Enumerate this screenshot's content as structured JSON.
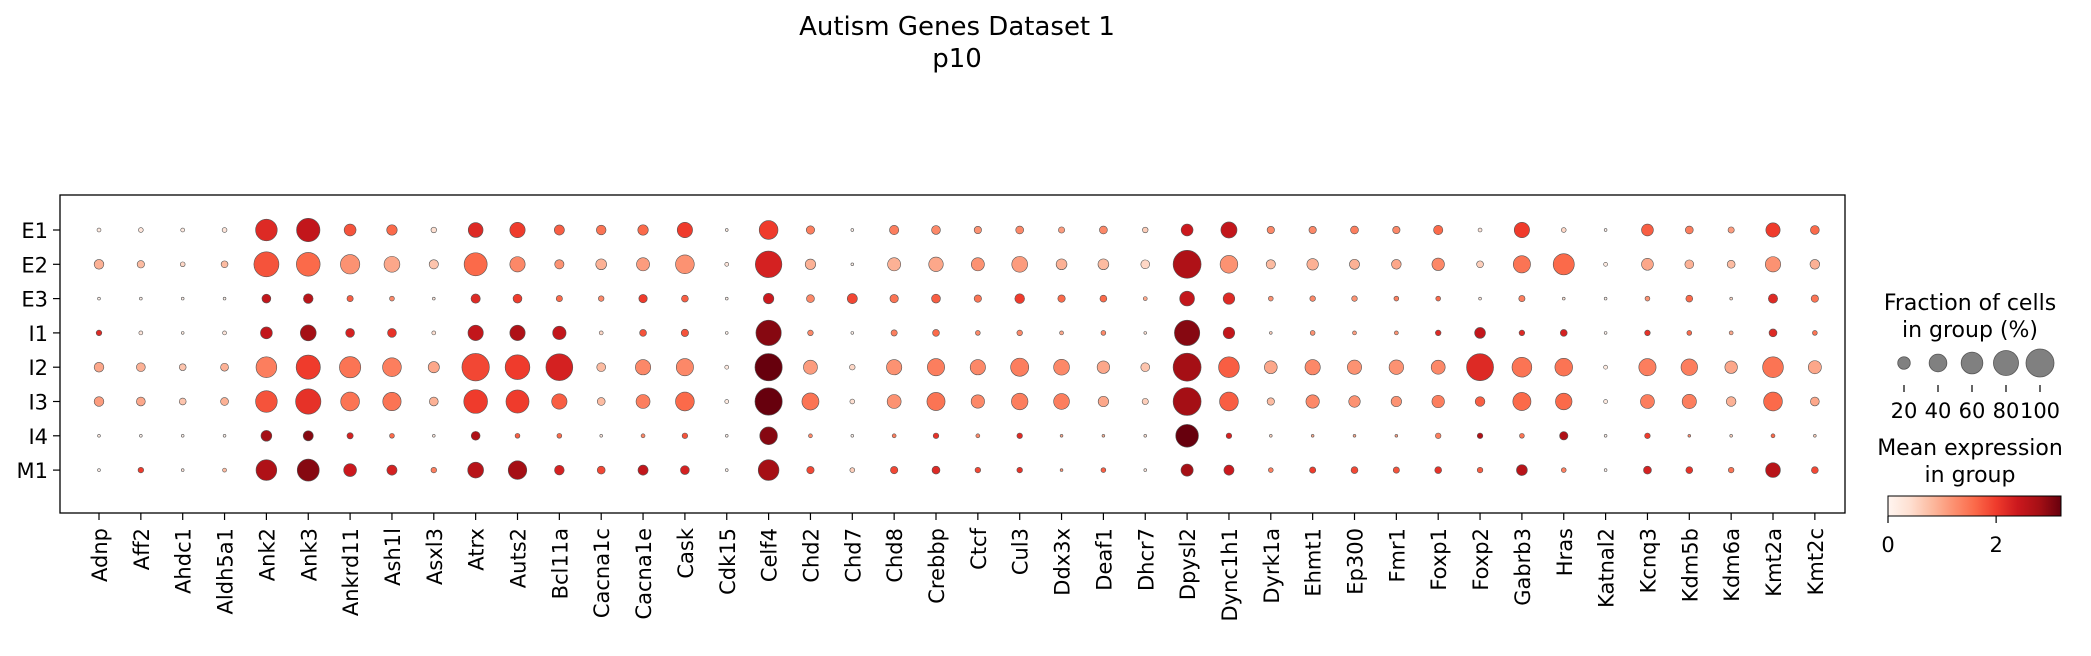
{
  "chart_data": {
    "type": "dotplot",
    "title": "Autism Genes Dataset 1",
    "subtitle": "p10",
    "genes": [
      "Adnp",
      "Aff2",
      "Ahdc1",
      "Aldh5a1",
      "Ank2",
      "Ank3",
      "Ankrd11",
      "Ash1l",
      "Asxl3",
      "Atrx",
      "Auts2",
      "Bcl11a",
      "Cacna1c",
      "Cacna1e",
      "Cask",
      "Cdk15",
      "Celf4",
      "Chd2",
      "Chd7",
      "Chd8",
      "Crebbp",
      "Ctcf",
      "Cul3",
      "Ddx3x",
      "Deaf1",
      "Dhcr7",
      "Dpysl2",
      "Dync1h1",
      "Dyrk1a",
      "Ehmt1",
      "Ep300",
      "Fmr1",
      "Foxp1",
      "Foxp2",
      "Gabrb3",
      "Hras",
      "Katnal2",
      "Kcnq3",
      "Kdm5b",
      "Kdm6a",
      "Kmt2a",
      "Kmt2c"
    ],
    "groups": [
      "E1",
      "E2",
      "E3",
      "I1",
      "I2",
      "I3",
      "I4",
      "M1"
    ],
    "fraction_pct": [
      [
        2,
        3,
        2,
        3,
        60,
        70,
        18,
        14,
        4,
        28,
        30,
        13,
        12,
        14,
        30,
        1,
        45,
        9,
        1,
        11,
        10,
        7,
        8,
        5,
        8,
        4,
        18,
        33,
        7,
        7,
        8,
        7,
        11,
        2,
        30,
        3,
        1,
        18,
        8,
        5,
        26,
        10
      ],
      [
        12,
        7,
        3,
        6,
        80,
        72,
        48,
        32,
        11,
        68,
        30,
        11,
        15,
        22,
        45,
        2,
        90,
        14,
        1,
        22,
        27,
        22,
        32,
        15,
        15,
        10,
        100,
        40,
        11,
        17,
        13,
        12,
        20,
        6,
        38,
        57,
        2,
        18,
        10,
        8,
        30,
        12
      ],
      [
        1,
        1,
        1,
        1,
        10,
        12,
        5,
        3,
        1,
        11,
        10,
        5,
        4,
        9,
        6,
        1,
        14,
        8,
        13,
        9,
        10,
        7,
        12,
        7,
        6,
        2,
        28,
        17,
        3,
        4,
        4,
        3,
        3,
        1,
        5,
        1,
        1,
        3,
        6,
        1,
        11,
        7
      ],
      [
        4,
        2,
        1,
        2,
        18,
        32,
        10,
        10,
        2,
        30,
        30,
        23,
        2,
        6,
        7,
        1,
        82,
        4,
        1,
        5,
        6,
        3,
        4,
        2,
        3,
        1,
        82,
        17,
        1,
        3,
        2,
        2,
        4,
        15,
        4,
        6,
        1,
        4,
        3,
        2,
        8,
        3
      ],
      [
        12,
        10,
        6,
        8,
        55,
        75,
        58,
        45,
        16,
        96,
        78,
        92,
        10,
        30,
        38,
        2,
        95,
        25,
        4,
        30,
        38,
        30,
        42,
        32,
        20,
        10,
        100,
        55,
        21,
        30,
        26,
        27,
        25,
        93,
        50,
        40,
        2,
        38,
        35,
        20,
        55,
        22
      ],
      [
        12,
        10,
        6,
        8,
        60,
        82,
        45,
        43,
        10,
        72,
        68,
        30,
        8,
        25,
        45,
        2,
        95,
        37,
        3,
        25,
        42,
        23,
        35,
        32,
        14,
        5,
        100,
        45,
        7,
        23,
        17,
        14,
        20,
        12,
        42,
        35,
        2,
        25,
        26,
        12,
        45,
        10
      ],
      [
        1,
        1,
        1,
        1,
        15,
        13,
        5,
        3,
        1,
        10,
        3,
        3,
        1,
        2,
        4,
        1,
        40,
        2,
        1,
        2,
        4,
        2,
        4,
        1,
        1,
        1,
        66,
        4,
        1,
        1,
        1,
        1,
        4,
        4,
        3,
        9,
        1,
        4,
        1,
        1,
        2,
        1
      ],
      [
        1,
        4,
        1,
        2,
        55,
        62,
        21,
        13,
        4,
        32,
        44,
        12,
        8,
        13,
        10,
        1,
        55,
        7,
        3,
        7,
        8,
        4,
        4,
        1,
        3,
        1,
        19,
        13,
        3,
        5,
        6,
        5,
        6,
        4,
        15,
        3,
        1,
        8,
        6,
        4,
        28,
        6
      ]
    ],
    "mean_expr": [
      [
        0.2,
        0.3,
        0.2,
        0.3,
        2.2,
        2.5,
        1.8,
        1.6,
        0.4,
        2.2,
        2.0,
        1.7,
        1.5,
        1.6,
        2.0,
        0.2,
        2.0,
        1.4,
        0.1,
        1.4,
        1.3,
        1.2,
        1.3,
        1.1,
        1.3,
        0.6,
        2.4,
        2.5,
        1.3,
        1.3,
        1.4,
        1.3,
        1.6,
        0.3,
        2.0,
        0.5,
        0.1,
        1.7,
        1.4,
        1.1,
        2.0,
        1.6
      ],
      [
        0.9,
        0.8,
        0.5,
        0.8,
        1.8,
        1.6,
        1.2,
        1.0,
        0.7,
        1.6,
        1.3,
        1.2,
        0.9,
        1.1,
        1.2,
        0.3,
        2.3,
        0.9,
        0.1,
        0.9,
        1.0,
        1.2,
        1.1,
        0.9,
        0.8,
        0.5,
        2.7,
        1.2,
        0.8,
        0.9,
        0.9,
        1.0,
        1.3,
        0.6,
        1.5,
        1.6,
        0.2,
        1.0,
        0.9,
        0.8,
        1.2,
        0.9
      ],
      [
        0.1,
        0.1,
        0.1,
        0.1,
        2.5,
        2.6,
        1.7,
        1.3,
        0.3,
        2.2,
        2.0,
        1.6,
        1.3,
        2.0,
        1.7,
        0.1,
        2.4,
        1.3,
        1.9,
        1.5,
        1.7,
        1.5,
        2.0,
        1.6,
        1.6,
        1.0,
        2.5,
        2.2,
        1.2,
        1.3,
        1.2,
        1.4,
        1.6,
        0.3,
        1.4,
        0.4,
        0.1,
        1.2,
        1.6,
        0.5,
        2.2,
        1.5
      ],
      [
        2.2,
        0.3,
        0.2,
        0.3,
        2.5,
        2.8,
        2.3,
        2.1,
        0.4,
        2.5,
        2.7,
        2.5,
        0.5,
        1.8,
        1.8,
        0.1,
        3.0,
        1.3,
        0.1,
        1.4,
        1.6,
        1.3,
        1.3,
        1.0,
        1.3,
        0.4,
        3.0,
        2.5,
        0.6,
        1.2,
        1.1,
        1.2,
        2.2,
        2.5,
        2.2,
        2.3,
        0.1,
        2.1,
        1.6,
        1.0,
        2.2,
        1.5
      ],
      [
        1.0,
        0.9,
        0.7,
        0.9,
        1.4,
        2.0,
        1.5,
        1.4,
        1.0,
        1.9,
        2.0,
        2.3,
        0.8,
        1.3,
        1.3,
        0.2,
        3.2,
        1.1,
        0.5,
        1.2,
        1.4,
        1.3,
        1.4,
        1.3,
        1.0,
        0.7,
        2.8,
        1.7,
        1.0,
        1.3,
        1.2,
        1.2,
        1.3,
        2.2,
        1.5,
        1.5,
        0.2,
        1.4,
        1.4,
        1.0,
        1.5,
        1.0
      ],
      [
        1.1,
        1.0,
        0.7,
        0.9,
        1.8,
        2.1,
        1.5,
        1.5,
        0.9,
        2.0,
        2.0,
        1.7,
        0.8,
        1.4,
        1.6,
        0.2,
        3.2,
        1.5,
        0.4,
        1.2,
        1.5,
        1.3,
        1.4,
        1.4,
        1.0,
        0.6,
        2.8,
        1.7,
        0.8,
        1.3,
        1.2,
        1.2,
        1.4,
        1.7,
        1.6,
        1.6,
        0.2,
        1.4,
        1.4,
        0.9,
        1.6,
        1.0
      ],
      [
        0.2,
        0.1,
        0.1,
        0.1,
        2.8,
        3.0,
        2.3,
        1.6,
        0.3,
        2.7,
        1.7,
        1.6,
        0.3,
        1.3,
        1.8,
        0.1,
        3.0,
        1.3,
        0.1,
        1.4,
        2.1,
        1.3,
        2.2,
        1.0,
        0.9,
        0.4,
        3.2,
        2.3,
        0.6,
        1.0,
        1.0,
        1.1,
        1.4,
        2.7,
        1.5,
        2.7,
        0.1,
        2.0,
        1.3,
        0.6,
        1.6,
        0.6
      ],
      [
        0.1,
        2.0,
        0.3,
        0.8,
        2.7,
        3.0,
        2.4,
        2.3,
        1.4,
        2.6,
        2.8,
        2.3,
        1.9,
        2.5,
        2.3,
        0.1,
        2.8,
        1.9,
        0.6,
        1.9,
        2.2,
        1.9,
        2.1,
        1.2,
        1.7,
        0.3,
        2.8,
        2.4,
        1.4,
        2.0,
        1.9,
        1.8,
        2.1,
        1.7,
        2.6,
        1.4,
        0.1,
        2.3,
        2.1,
        1.5,
        2.6,
        1.9
      ]
    ],
    "size_legend": {
      "title_line1": "Fraction of cells",
      "title_line2": "in group (%)",
      "values": [
        20,
        40,
        60,
        80,
        100
      ],
      "labels": [
        "20",
        "40",
        "60",
        "80",
        "100"
      ]
    },
    "color_legend": {
      "title_line1": "Mean expression",
      "title_line2": "in group",
      "tick_labels": [
        "0",
        "2"
      ],
      "ticks": [
        0,
        2
      ],
      "vmin": 0,
      "vmax": 3.2,
      "colormap": "Reds",
      "colors": [
        "#fff5f0",
        "#fee0d2",
        "#fcbba1",
        "#fc9272",
        "#fb6a4a",
        "#ef3b2c",
        "#cb181d",
        "#a50f15",
        "#67000d"
      ]
    }
  }
}
